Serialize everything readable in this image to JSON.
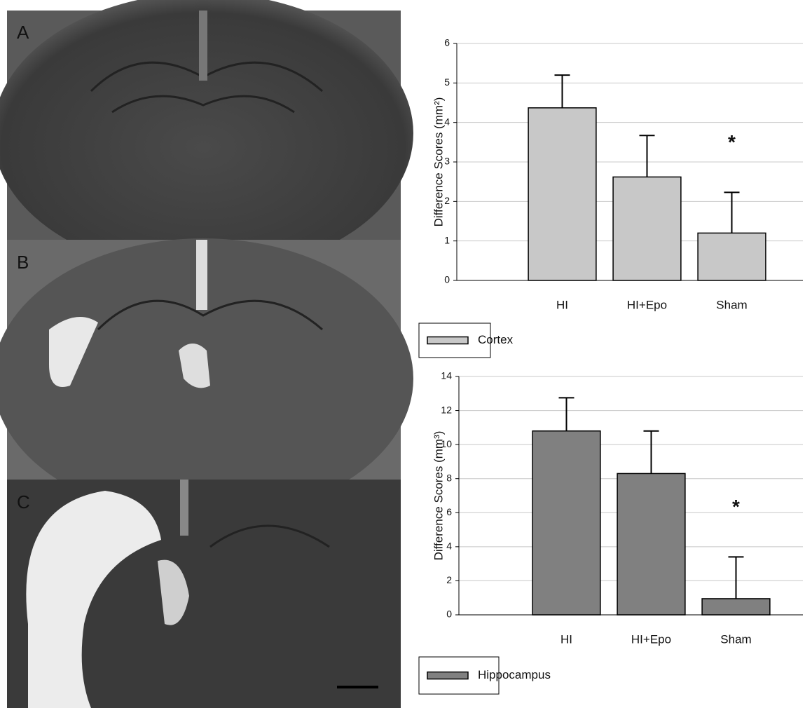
{
  "panel_labels": [
    "A",
    "B",
    "C"
  ],
  "chart_data": [
    {
      "type": "bar",
      "y_label": "Difference Scores (mm²)",
      "categories": [
        "HI",
        "HI+Epo",
        "Sham"
      ],
      "series": [
        {
          "name": "Cortex",
          "color": "#c8c8c8",
          "values": [
            4.37,
            2.62,
            1.2
          ],
          "errors": [
            0.83,
            1.05,
            1.03
          ]
        }
      ],
      "annotations": [
        {
          "text": "*"
        }
      ],
      "ylim": [
        0,
        6
      ],
      "yticks": [
        0,
        1,
        2,
        3,
        4,
        5,
        6
      ],
      "grid": true
    },
    {
      "type": "bar",
      "y_label": "Difference Scores (mm³)",
      "categories": [
        "HI",
        "HI+Epo",
        "Sham"
      ],
      "series": [
        {
          "name": "Hippocampus",
          "color": "#808080",
          "values": [
            10.8,
            8.3,
            0.95
          ],
          "errors": [
            1.95,
            2.5,
            2.45
          ]
        }
      ],
      "annotations": [
        {
          "text": "*"
        }
      ],
      "ylim": [
        0,
        14
      ],
      "yticks": [
        0,
        2,
        4,
        6,
        8,
        10,
        12,
        14
      ],
      "grid": true
    }
  ]
}
